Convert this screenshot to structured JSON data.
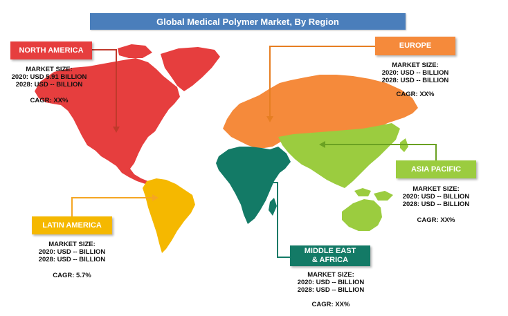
{
  "title": "Global Medical Polymer Market, By Region",
  "colors": {
    "title_bar": "#4a7ebb",
    "north_america": "#e63e3e",
    "europe": "#f58a3b",
    "asia_pacific": "#9bcc3f",
    "latin_america": "#f5b800",
    "middle_east_africa": "#137a66"
  },
  "regions": {
    "north_america": {
      "name": "NORTH AMERICA",
      "market_size_label": "MARKET SIZE:",
      "line_2020": "2020: USD 5.91 BILLION",
      "line_2028": "2028: USD -- BILLION",
      "cagr": "CAGR: XX%"
    },
    "europe": {
      "name": "EUROPE",
      "market_size_label": "MARKET SIZE:",
      "line_2020": "2020: USD -- BILLION",
      "line_2028": "2028: USD -- BILLION",
      "cagr": "CAGR: XX%"
    },
    "asia_pacific": {
      "name": "ASIA PACIFIC",
      "market_size_label": "MARKET SIZE:",
      "line_2020": "2020: USD -- BILLION",
      "line_2028": "2028: USD -- BILLION",
      "cagr": "CAGR: XX%"
    },
    "latin_america": {
      "name": "LATIN AMERICA",
      "market_size_label": "MARKET SIZE:",
      "line_2020": "2020: USD -- BILLION",
      "line_2028": "2028: USD -- BILLION",
      "cagr": "CAGR: 5.7%"
    },
    "middle_east_africa": {
      "name_line1": "MIDDLE EAST",
      "name_line2": "& AFRICA",
      "market_size_label": "MARKET SIZE:",
      "line_2020": "2020: USD -- BILLION",
      "line_2028": "2028: USD -- BILLION",
      "cagr": "CAGR: XX%"
    }
  }
}
